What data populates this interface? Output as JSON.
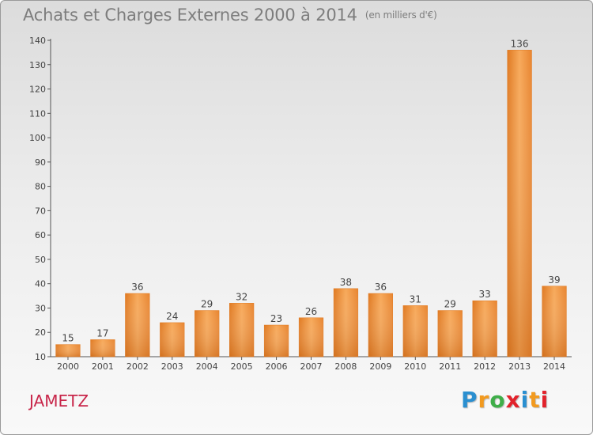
{
  "header": {
    "title": "Achats et Charges Externes 2000 à 2014",
    "unit": "(en milliers d'€)"
  },
  "footer": {
    "commune": "JAMETZ"
  },
  "logo": {
    "text": "Proxiti",
    "colors": [
      "#2a8fd0",
      "#f29a1f",
      "#3fae49",
      "#e2222b",
      "#2a8fd0",
      "#f29a1f",
      "#e2222b"
    ]
  },
  "chart_data": {
    "type": "bar",
    "title": "Achats et Charges Externes 2000 à 2014",
    "subtitle": "(en milliers d'€)",
    "categories": [
      "2000",
      "2001",
      "2002",
      "2003",
      "2004",
      "2005",
      "2006",
      "2007",
      "2008",
      "2009",
      "2010",
      "2011",
      "2012",
      "2013",
      "2014"
    ],
    "values": [
      15,
      17,
      36,
      24,
      29,
      32,
      23,
      26,
      38,
      36,
      31,
      29,
      33,
      136,
      39
    ],
    "ylim": [
      10,
      140
    ],
    "yticks": [
      10,
      20,
      30,
      40,
      50,
      60,
      70,
      80,
      90,
      100,
      110,
      120,
      130,
      140
    ],
    "xlabel": "",
    "ylabel": "",
    "grid": false,
    "bar_color": "#f0913a"
  }
}
